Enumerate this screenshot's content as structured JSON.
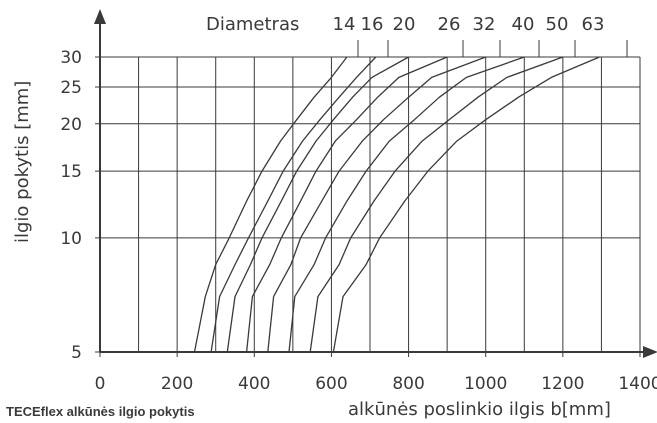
{
  "chart_data": {
    "type": "line",
    "title": "Diametras",
    "xlabel": "alkūnės poslinkio ilgis b[mm]",
    "ylabel": "ilgio pokytis [mm]",
    "xlim": [
      0,
      1400
    ],
    "ylim": [
      5,
      30
    ],
    "y_scale": "log",
    "grid": true,
    "x_ticks": [
      "0",
      "200",
      "400",
      "600",
      "800",
      "1000",
      "1200",
      "1400"
    ],
    "y_ticks": [
      "5",
      "10",
      "15",
      "20",
      "25",
      "30"
    ],
    "series": [
      {
        "name": "14",
        "values": [
          [
            245,
            5
          ],
          [
            273,
            7
          ],
          [
            300,
            8.5
          ],
          [
            335,
            10
          ],
          [
            380,
            12.5
          ],
          [
            420,
            15
          ],
          [
            468,
            18
          ],
          [
            510,
            20.5
          ],
          [
            555,
            23.5
          ],
          [
            600,
            26.5
          ],
          [
            640,
            30
          ]
        ]
      },
      {
        "name": "16",
        "values": [
          [
            288,
            5
          ],
          [
            310,
            7
          ],
          [
            350,
            8.5
          ],
          [
            385,
            10
          ],
          [
            435,
            12.5
          ],
          [
            475,
            15
          ],
          [
            525,
            18
          ],
          [
            570,
            20.5
          ],
          [
            620,
            23.5
          ],
          [
            665,
            26.5
          ],
          [
            715,
            30
          ]
        ]
      },
      {
        "name": "20",
        "values": [
          [
            330,
            5
          ],
          [
            350,
            7
          ],
          [
            390,
            8.5
          ],
          [
            420,
            10
          ],
          [
            470,
            12.5
          ],
          [
            510,
            15
          ],
          [
            560,
            18
          ],
          [
            605,
            20.5
          ],
          [
            655,
            23.5
          ],
          [
            705,
            26.5
          ],
          [
            800,
            30
          ]
        ]
      },
      {
        "name": "26",
        "values": [
          [
            380,
            5
          ],
          [
            395,
            7
          ],
          [
            440,
            8.5
          ],
          [
            470,
            10
          ],
          [
            520,
            12.5
          ],
          [
            560,
            15
          ],
          [
            610,
            18
          ],
          [
            665,
            20.5
          ],
          [
            720,
            23.5
          ],
          [
            775,
            26.5
          ],
          [
            900,
            30
          ]
        ]
      },
      {
        "name": "32",
        "values": [
          [
            435,
            5
          ],
          [
            450,
            7
          ],
          [
            495,
            8.5
          ],
          [
            520,
            10
          ],
          [
            575,
            12.5
          ],
          [
            620,
            15
          ],
          [
            680,
            18
          ],
          [
            735,
            20.5
          ],
          [
            800,
            23.5
          ],
          [
            860,
            26.5
          ],
          [
            1000,
            30
          ]
        ]
      },
      {
        "name": "40",
        "values": [
          [
            490,
            5
          ],
          [
            505,
            7
          ],
          [
            555,
            8.5
          ],
          [
            585,
            10
          ],
          [
            640,
            12.5
          ],
          [
            690,
            15
          ],
          [
            750,
            18
          ],
          [
            815,
            20.5
          ],
          [
            880,
            23.5
          ],
          [
            950,
            26.5
          ],
          [
            1100,
            30
          ]
        ]
      },
      {
        "name": "50",
        "values": [
          [
            545,
            5
          ],
          [
            565,
            7
          ],
          [
            620,
            8.5
          ],
          [
            650,
            10
          ],
          [
            710,
            12.5
          ],
          [
            765,
            15
          ],
          [
            835,
            18
          ],
          [
            905,
            20.5
          ],
          [
            980,
            23.5
          ],
          [
            1055,
            26.5
          ],
          [
            1200,
            30
          ]
        ]
      },
      {
        "name": "63",
        "values": [
          [
            605,
            5
          ],
          [
            630,
            7
          ],
          [
            690,
            8.5
          ],
          [
            725,
            10
          ],
          [
            790,
            12.5
          ],
          [
            850,
            15
          ],
          [
            925,
            18
          ],
          [
            1000,
            20.5
          ],
          [
            1085,
            23.5
          ],
          [
            1170,
            26.5
          ],
          [
            1295,
            30
          ]
        ]
      }
    ]
  },
  "caption": "TECEflex alkūnės ilgio pokytis"
}
